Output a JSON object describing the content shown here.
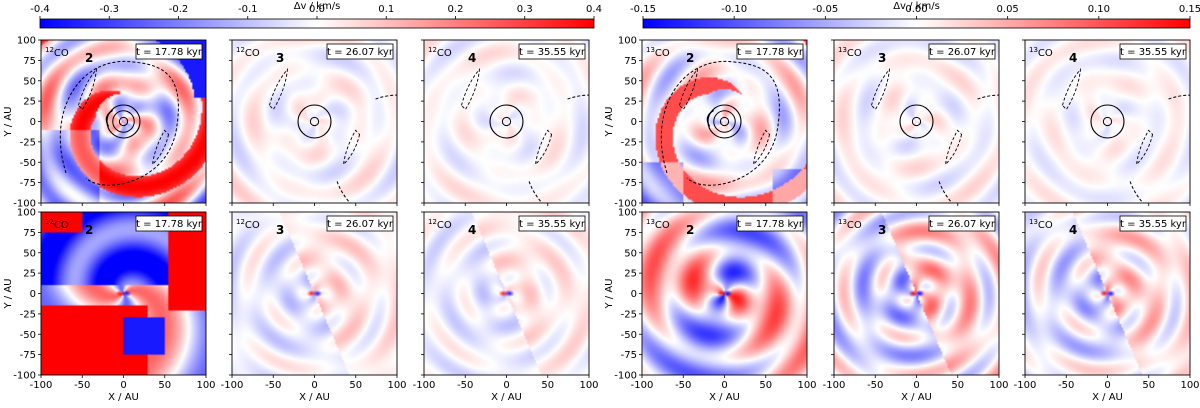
{
  "chart_data": {
    "type": "heatmap",
    "colorbars": [
      {
        "id": "12co",
        "label": "Δv / km/s",
        "range": [
          -0.4,
          0.4
        ],
        "ticks": [
          "-0.4",
          "-0.3",
          "-0.2",
          "-0.1",
          "0.0",
          "0.1",
          "0.2",
          "0.3",
          "0.4"
        ],
        "colormap": "bwr"
      },
      {
        "id": "13co",
        "label": "Δv / km/s",
        "range": [
          -0.15,
          0.15
        ],
        "ticks": [
          "-0.15",
          "-0.10",
          "-0.05",
          "0.00",
          "0.05",
          "0.10",
          "0.15"
        ],
        "colormap": "bwr"
      }
    ],
    "axes": {
      "xlabel": "X / AU",
      "ylabel": "Y / AU",
      "xlim": [
        -100,
        100
      ],
      "ylim": [
        -100,
        100
      ],
      "xticks": [
        "-100",
        "-50",
        "0",
        "50",
        "100"
      ],
      "yticks": [
        "100",
        "75",
        "50",
        "25",
        "0",
        "-25",
        "-50",
        "-75",
        "-100"
      ]
    },
    "panels": [
      {
        "id": "p1",
        "row": 1,
        "col": 1,
        "molecule": "12CO",
        "iso": "12",
        "mol": "CO",
        "epoch": "2",
        "time": "t = 17.78 kyr",
        "contours": true,
        "strength": 1.0
      },
      {
        "id": "p2",
        "row": 1,
        "col": 2,
        "molecule": "12CO",
        "iso": "12",
        "mol": "CO",
        "epoch": "3",
        "time": "t = 26.07 kyr",
        "contours": true,
        "strength": 0.3
      },
      {
        "id": "p3",
        "row": 1,
        "col": 3,
        "molecule": "12CO",
        "iso": "12",
        "mol": "CO",
        "epoch": "4",
        "time": "t = 35.55 kyr",
        "contours": true,
        "strength": 0.25
      },
      {
        "id": "p4",
        "row": 1,
        "col": 4,
        "molecule": "13CO",
        "iso": "13",
        "mol": "CO",
        "epoch": "2",
        "time": "t = 17.78 kyr",
        "contours": true,
        "strength": 0.6
      },
      {
        "id": "p5",
        "row": 1,
        "col": 5,
        "molecule": "13CO",
        "iso": "13",
        "mol": "CO",
        "epoch": "3",
        "time": "t = 26.07 kyr",
        "contours": true,
        "strength": 0.3
      },
      {
        "id": "p6",
        "row": 1,
        "col": 6,
        "molecule": "13CO",
        "iso": "13",
        "mol": "CO",
        "epoch": "4",
        "time": "t = 35.55 kyr",
        "contours": true,
        "strength": 0.25
      },
      {
        "id": "p7",
        "row": 2,
        "col": 1,
        "molecule": "12CO",
        "iso": "12",
        "mol": "CO",
        "epoch": "2",
        "time": "t = 17.78 kyr",
        "contours": false,
        "strength": 1.0
      },
      {
        "id": "p8",
        "row": 2,
        "col": 2,
        "molecule": "12CO",
        "iso": "12",
        "mol": "CO",
        "epoch": "3",
        "time": "t = 26.07 kyr",
        "contours": false,
        "strength": 0.35
      },
      {
        "id": "p9",
        "row": 2,
        "col": 3,
        "molecule": "12CO",
        "iso": "12",
        "mol": "CO",
        "epoch": "4",
        "time": "t = 35.55 kyr",
        "contours": false,
        "strength": 0.3
      },
      {
        "id": "p10",
        "row": 2,
        "col": 4,
        "molecule": "13CO",
        "iso": "13",
        "mol": "CO",
        "epoch": "2",
        "time": "t = 17.78 kyr",
        "contours": false,
        "strength": 0.9
      },
      {
        "id": "p11",
        "row": 2,
        "col": 5,
        "molecule": "13CO",
        "iso": "13",
        "mol": "CO",
        "epoch": "3",
        "time": "t = 26.07 kyr",
        "contours": false,
        "strength": 0.7
      },
      {
        "id": "p12",
        "row": 2,
        "col": 6,
        "molecule": "13CO",
        "iso": "13",
        "mol": "CO",
        "epoch": "4",
        "time": "t = 35.55 kyr",
        "contours": false,
        "strength": 0.55
      }
    ]
  }
}
